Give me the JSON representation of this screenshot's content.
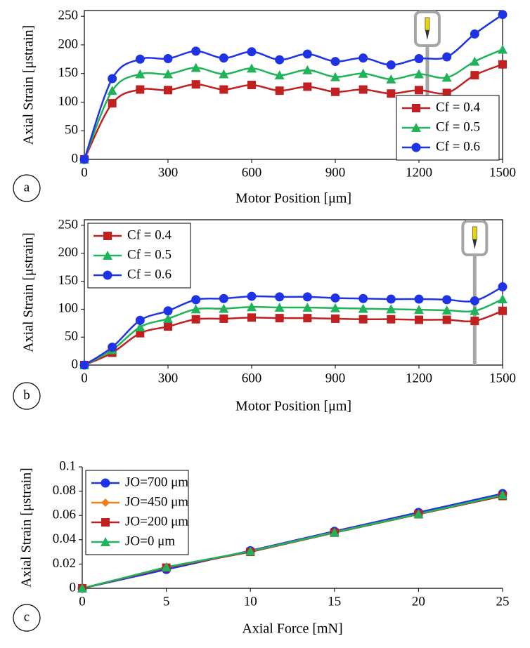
{
  "chart_data": [
    {
      "type": "line",
      "label": "a",
      "smooth": true,
      "frame": "box",
      "legend": "lower right",
      "probe_x": 1230,
      "x_label": "Motor Position [μm]",
      "y_label": "Axial Strain [μstrain]",
      "x": [
        0,
        100,
        200,
        300,
        400,
        500,
        600,
        700,
        800,
        900,
        1000,
        1100,
        1200,
        1300,
        1400,
        1500
      ],
      "xlim": [
        0,
        1500
      ],
      "xticks": [
        0,
        300,
        600,
        900,
        1200,
        1500
      ],
      "ylim": [
        0,
        260
      ],
      "yticks": [
        0,
        50,
        100,
        150,
        200,
        250
      ],
      "series": [
        {
          "name": "Cf = 0.4",
          "color": "#c0201f",
          "marker": "square",
          "values": [
            0,
            98,
            122,
            121,
            131,
            122,
            130,
            120,
            127,
            118,
            122,
            115,
            121,
            116,
            147,
            166
          ]
        },
        {
          "name": "Cf = 0.5",
          "color": "#21b35a",
          "marker": "triangle",
          "values": [
            0,
            120,
            149,
            149,
            160,
            149,
            159,
            147,
            156,
            144,
            150,
            140,
            149,
            143,
            171,
            192
          ]
        },
        {
          "name": "Cf = 0.6",
          "color": "#1f33e6",
          "marker": "circle",
          "values": [
            0,
            141,
            175,
            176,
            189,
            177,
            188,
            174,
            184,
            171,
            177,
            165,
            176,
            179,
            219,
            253
          ]
        }
      ]
    },
    {
      "type": "line",
      "label": "b",
      "smooth": true,
      "frame": "box",
      "legend": "upper left",
      "probe_x": 1400,
      "x_label": "Motor Position [μm]",
      "y_label": "Axial Strain [μstrain]",
      "x": [
        0,
        100,
        200,
        300,
        400,
        500,
        600,
        700,
        800,
        900,
        1000,
        1100,
        1200,
        1300,
        1400,
        1500
      ],
      "xlim": [
        0,
        1500
      ],
      "xticks": [
        0,
        300,
        600,
        900,
        1200,
        1500
      ],
      "ylim": [
        0,
        260
      ],
      "yticks": [
        0,
        50,
        100,
        150,
        200,
        250
      ],
      "series": [
        {
          "name": "Cf = 0.4",
          "color": "#c0201f",
          "marker": "square",
          "values": [
            0,
            22,
            57,
            69,
            82,
            83,
            85,
            84,
            84,
            83,
            82,
            82,
            81,
            81,
            79,
            97
          ]
        },
        {
          "name": "Cf = 0.5",
          "color": "#21b35a",
          "marker": "triangle",
          "values": [
            0,
            27,
            68,
            83,
            100,
            101,
            104,
            103,
            103,
            102,
            101,
            100,
            99,
            98,
            97,
            118
          ]
        },
        {
          "name": "Cf = 0.6",
          "color": "#1f33e6",
          "marker": "circle",
          "values": [
            0,
            32,
            80,
            97,
            117,
            119,
            123,
            122,
            122,
            120,
            119,
            118,
            118,
            117,
            115,
            140
          ]
        }
      ]
    },
    {
      "type": "line",
      "label": "c",
      "smooth": false,
      "frame": "axes",
      "legend": "upper left",
      "x_label": "Axial Force [mN]",
      "y_label": "Axial Strain [μstrain]",
      "x": [
        0,
        5,
        10,
        15,
        20,
        25
      ],
      "xlim": [
        0,
        25
      ],
      "xticks": [
        0,
        5,
        10,
        15,
        20,
        25
      ],
      "ylim": [
        0,
        0.1
      ],
      "yticks": [
        0,
        0.02,
        0.04,
        0.06,
        0.08,
        0.1
      ],
      "series": [
        {
          "name": "JO=700 μm",
          "color": "#1f33e6",
          "marker": "circle",
          "values": [
            0,
            0.0155,
            0.031,
            0.047,
            0.0625,
            0.078
          ]
        },
        {
          "name": "JO=450 μm",
          "color": "#f07f1e",
          "marker": "diamond",
          "values": [
            0,
            0.017,
            0.0305,
            0.0462,
            0.0612,
            0.0765
          ]
        },
        {
          "name": "JO=200 μm",
          "color": "#c0201f",
          "marker": "square",
          "values": [
            0,
            0.017,
            0.03,
            0.0458,
            0.061,
            0.076
          ]
        },
        {
          "name": "JO=0 μm",
          "color": "#21b35a",
          "marker": "triangle",
          "values": [
            0,
            0.0175,
            0.0305,
            0.046,
            0.0612,
            0.0768
          ]
        }
      ]
    }
  ]
}
